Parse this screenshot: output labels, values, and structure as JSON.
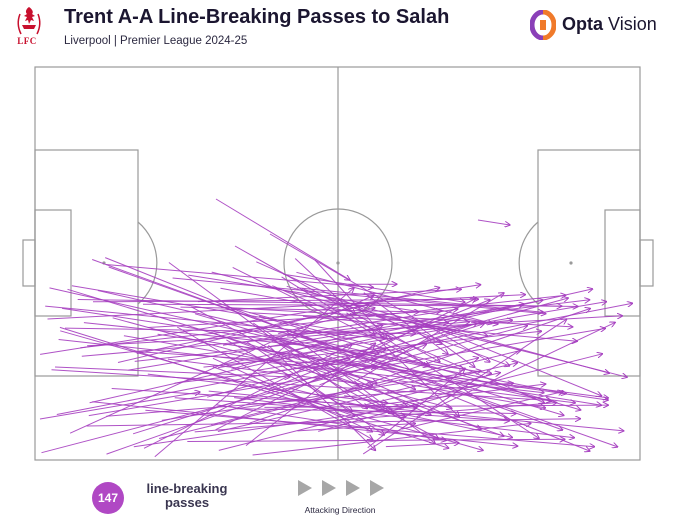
{
  "header": {
    "title": "Trent A-A Line-Breaking Passes to Salah",
    "subtitle": "Liverpool | Premier League 2024-25",
    "club_crest_text": "LFC",
    "brand_name_part1": "Opta",
    "brand_name_part2": "Vision"
  },
  "legend": {
    "pass_count": "147",
    "pass_count_label": "line-breaking passes",
    "direction_label": "Attacking Direction"
  },
  "colors": {
    "pass_line": "#a63fc0",
    "pitch_lines": "#9a9a9a",
    "badge": "#b048c4",
    "crest_red": "#c8102e",
    "brand_orange": "#f07a2a",
    "brand_purple": "#8a3fb8"
  },
  "icons": [
    "liverpool-crest-icon",
    "opta-vision-logo-icon",
    "play-arrow-icon"
  ]
}
